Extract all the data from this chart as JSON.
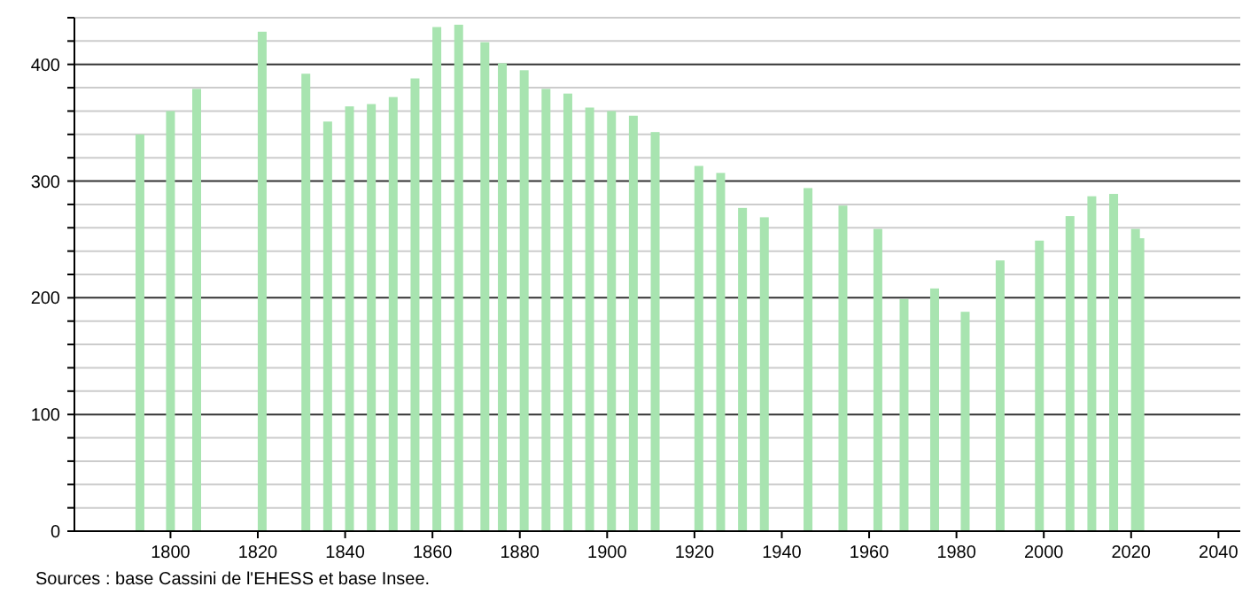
{
  "chart_data": {
    "type": "bar",
    "x": [
      1793,
      1800,
      1806,
      1821,
      1831,
      1836,
      1841,
      1846,
      1851,
      1856,
      1861,
      1866,
      1872,
      1876,
      1881,
      1886,
      1891,
      1896,
      1901,
      1906,
      1911,
      1921,
      1926,
      1931,
      1936,
      1946,
      1954,
      1962,
      1968,
      1975,
      1982,
      1990,
      1999,
      2006,
      2011,
      2016,
      2021,
      2022
    ],
    "values": [
      340,
      360,
      379,
      428,
      392,
      351,
      364,
      366,
      372,
      388,
      432,
      434,
      419,
      401,
      395,
      379,
      375,
      363,
      360,
      356,
      342,
      313,
      307,
      277,
      269,
      294,
      279,
      259,
      199,
      208,
      188,
      232,
      249,
      270,
      287,
      289,
      259,
      251
    ],
    "color": "#a8e4b0",
    "xlim": [
      1778,
      2045
    ],
    "xticks": [
      1800,
      1820,
      1840,
      1860,
      1880,
      1900,
      1920,
      1940,
      1960,
      1980,
      2000,
      2020,
      2040
    ],
    "ylim": [
      0,
      440
    ],
    "yticks": [
      0,
      {
        "value": 20,
        "label": null
      },
      {
        "value": 40,
        "label": null
      },
      {
        "value": 60,
        "label": null
      },
      {
        "value": 80,
        "label": null
      },
      100,
      {
        "value": 120,
        "label": null
      },
      {
        "value": 140,
        "label": null
      },
      {
        "value": 160,
        "label": null
      },
      {
        "value": 180,
        "label": null
      },
      200,
      {
        "value": 220,
        "label": null
      },
      {
        "value": 240,
        "label": null
      },
      {
        "value": 260,
        "label": null
      },
      {
        "value": 280,
        "label": null
      },
      300,
      {
        "value": 320,
        "label": null
      },
      {
        "value": 340,
        "label": null
      },
      {
        "value": 360,
        "label": null
      },
      {
        "value": 380,
        "label": null
      },
      400,
      {
        "value": 420,
        "label": null
      },
      {
        "value": 440,
        "label": null
      }
    ],
    "grid": true,
    "annotations": [
      "Sources : base Cassini de l'EHESS et base Insee."
    ]
  }
}
